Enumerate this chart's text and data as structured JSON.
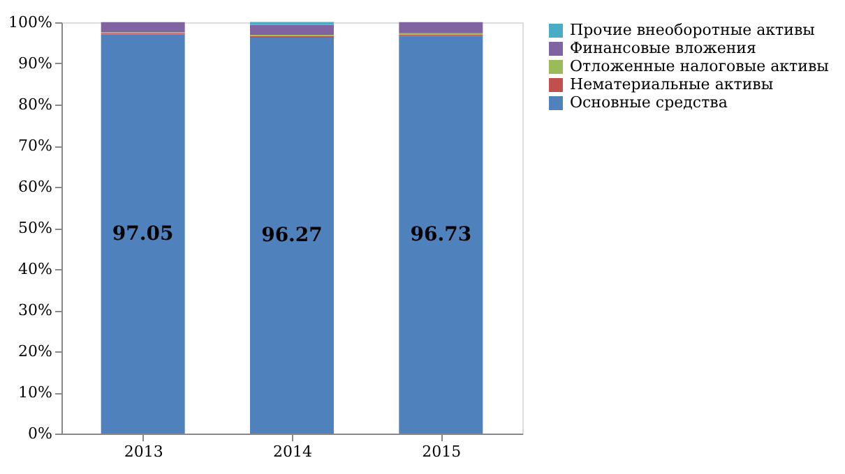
{
  "chart_data": {
    "type": "bar",
    "stacked": true,
    "categories": [
      "2013",
      "2014",
      "2015"
    ],
    "series": [
      {
        "name": "Основные средства",
        "color": "#4f81bd",
        "values": [
          97.05,
          96.27,
          96.73
        ],
        "value_labels": [
          "97.05",
          "96.27",
          "96.73"
        ]
      },
      {
        "name": "Нематериальные активы",
        "color": "#c0504d",
        "values": [
          0.3,
          0.4,
          0.3
        ]
      },
      {
        "name": "Отложенные налоговые активы",
        "color": "#9bbb59",
        "values": [
          0.2,
          0.3,
          0.3
        ]
      },
      {
        "name": "Финансовые вложения",
        "color": "#8064a2",
        "values": [
          2.5,
          2.4,
          2.7
        ]
      },
      {
        "name": "Прочие внеоборотные активы",
        "color": "#4bacc6",
        "values": [
          0.0,
          0.7,
          0.0
        ]
      }
    ],
    "ylim": [
      0,
      100
    ],
    "yticks": [
      {
        "value": 0,
        "label": "0%"
      },
      {
        "value": 10,
        "label": "10%"
      },
      {
        "value": 20,
        "label": "20%"
      },
      {
        "value": 30,
        "label": "30%"
      },
      {
        "value": 40,
        "label": "40%"
      },
      {
        "value": 50,
        "label": "50%"
      },
      {
        "value": 60,
        "label": "60%"
      },
      {
        "value": 70,
        "label": "70%"
      },
      {
        "value": 80,
        "label": "80%"
      },
      {
        "value": 90,
        "label": "90%"
      },
      {
        "value": 100,
        "label": "100%"
      }
    ],
    "legend": "right",
    "grid": false
  }
}
